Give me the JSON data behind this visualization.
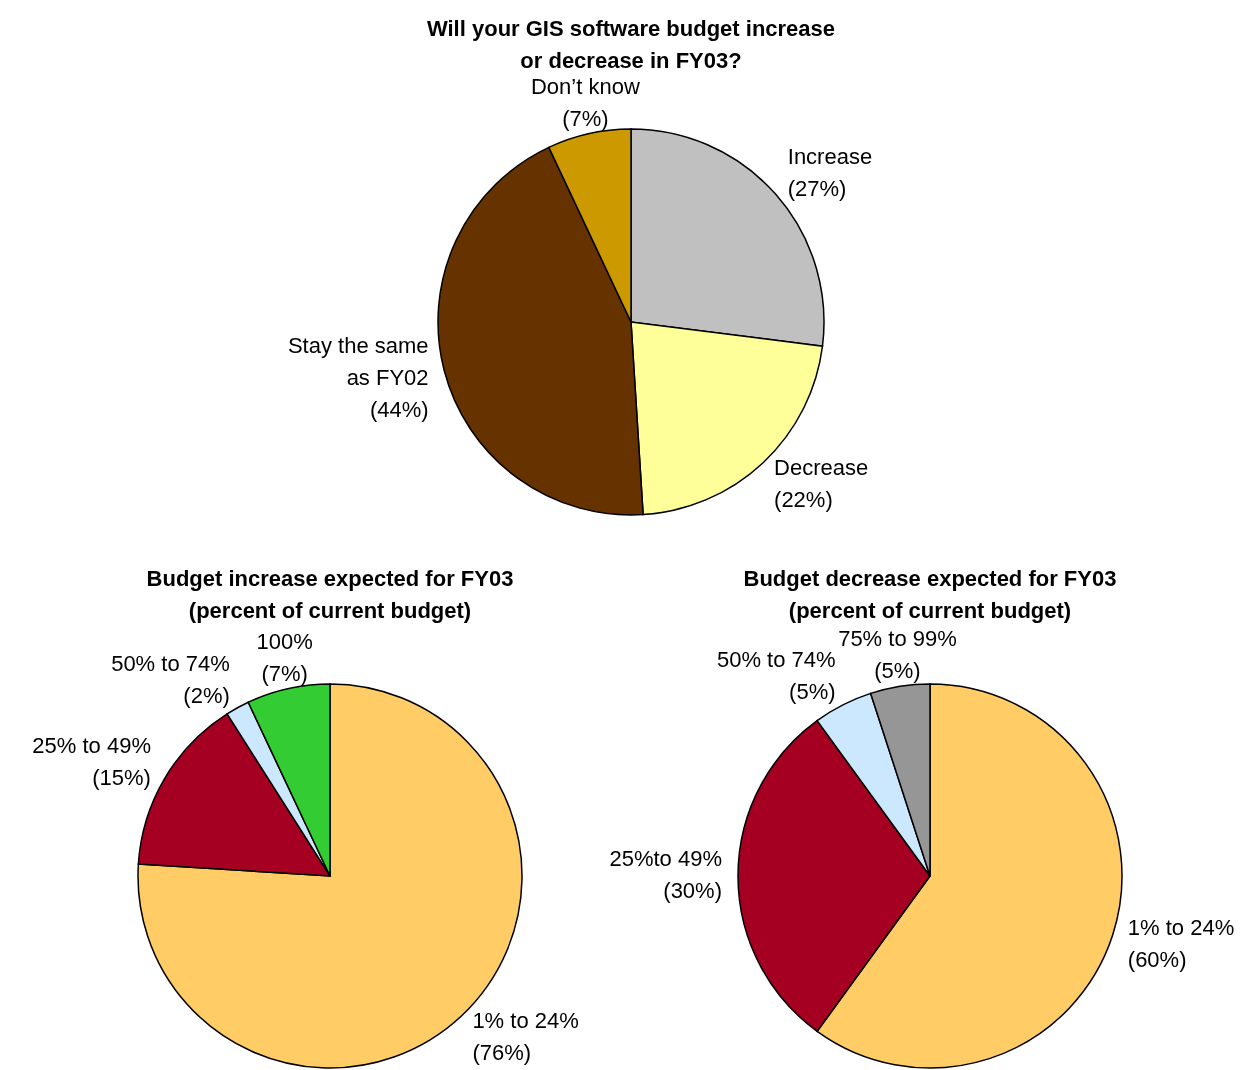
{
  "chart_data": [
    {
      "type": "pie",
      "title": "Will your GIS software budget increase or decrease in FY03?",
      "categories": [
        "Increase",
        "Decrease",
        "Stay the same as FY02",
        "Don’t know"
      ],
      "values": [
        27,
        22,
        44,
        7
      ],
      "colors": [
        "#c0c0c0",
        "#ffff99",
        "#663300",
        "#cc9900"
      ],
      "value_labels": [
        "(27%)",
        "(22%)",
        "(44%)",
        "(7%)"
      ]
    },
    {
      "type": "pie",
      "title": "Budget increase expected for FY03 (percent of current budget)",
      "categories": [
        "1% to 24%",
        "25% to 49%",
        "50% to 74%",
        "100%"
      ],
      "values": [
        76,
        15,
        2,
        7
      ],
      "colors": [
        "#ffcc66",
        "#a50021",
        "#cce8ff",
        "#33cc33"
      ],
      "value_labels": [
        "(76%)",
        "(15%)",
        "(2%)",
        "(7%)"
      ]
    },
    {
      "type": "pie",
      "title": "Budget decrease expected for FY03 (percent of current budget)",
      "categories": [
        "1% to 24%",
        "25%to 49%",
        "50% to 74%",
        "75% to 99%"
      ],
      "values": [
        60,
        30,
        5,
        5
      ],
      "colors": [
        "#ffcc66",
        "#a50021",
        "#cce8ff",
        "#969696"
      ],
      "value_labels": [
        "(60%)",
        "(30%)",
        "(5%)",
        "(5%)"
      ]
    }
  ]
}
